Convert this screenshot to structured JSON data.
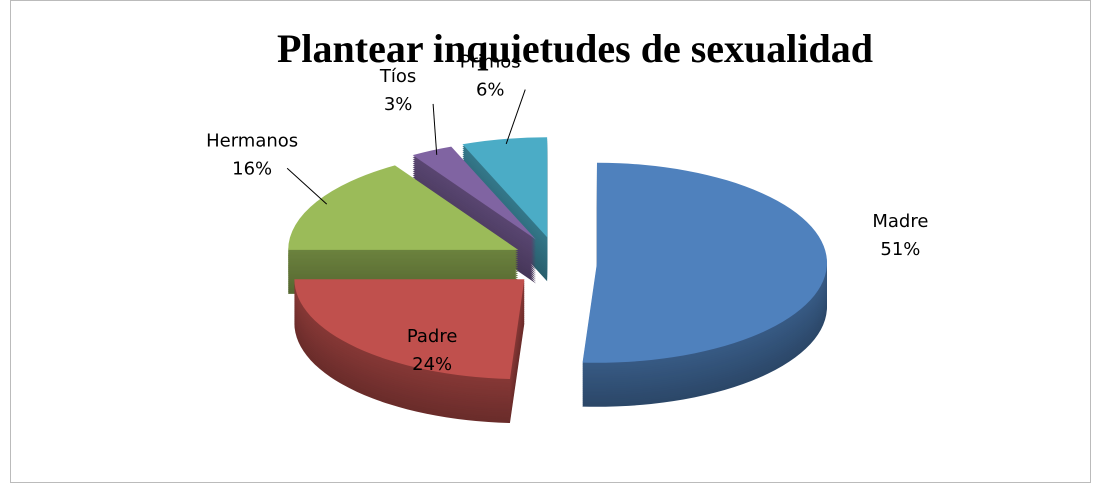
{
  "chart_data": {
    "type": "pie",
    "title": "Plantear inquietudes de sexualidad",
    "categories": [
      "Madre",
      "Padre",
      "Hermanos",
      "Tíos",
      "Primos"
    ],
    "values": [
      51,
      24,
      16,
      3,
      6
    ],
    "value_labels": [
      "51%",
      "24%",
      "16%",
      "3%",
      "6%"
    ],
    "colors": [
      "#4f81bd",
      "#c0504d",
      "#9bbb59",
      "#8064a2",
      "#4bacc6"
    ]
  }
}
